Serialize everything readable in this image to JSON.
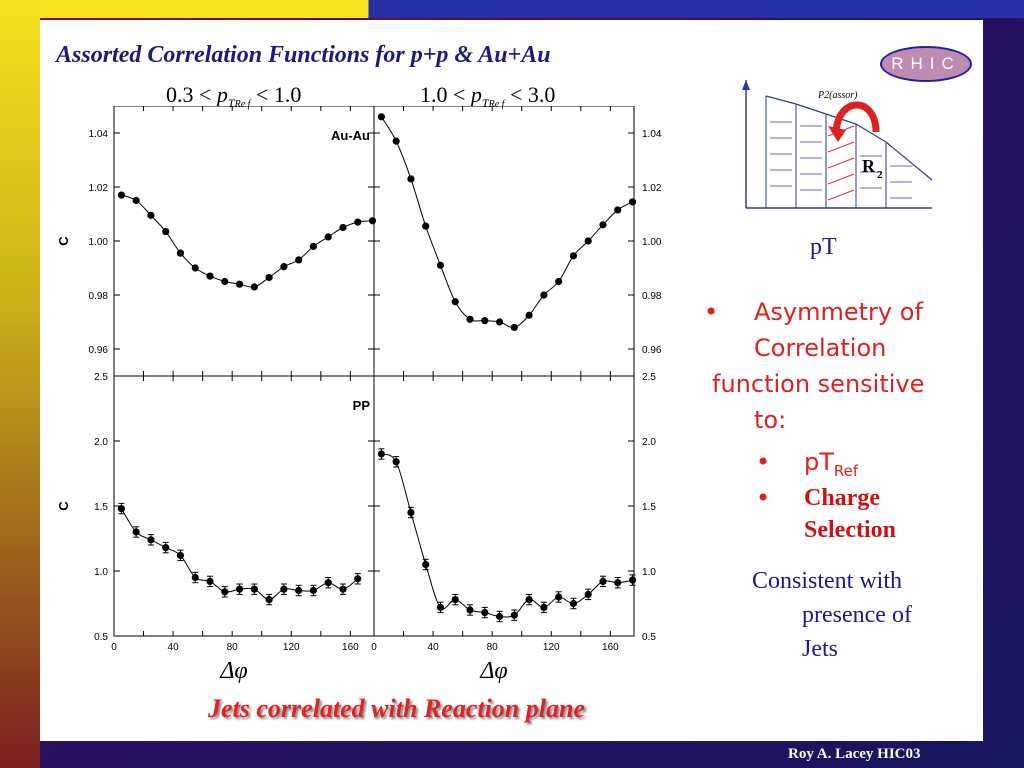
{
  "title": "Assorted Correlation Functions for p+p & Au+Au",
  "logo_text": "RHIC",
  "range_left": {
    "lo": "0.3 <",
    "var": "p",
    "sub": "T",
    "subsub": "Re f",
    "hi": "< 1.0"
  },
  "range_right": {
    "lo": "1.0 <",
    "var": "p",
    "sub": "T",
    "subsub": "Re f",
    "hi": "< 3.0"
  },
  "caption": "Jets correlated with Reaction plane",
  "schematic": {
    "label_top": "P2(assor)",
    "label_r": "R",
    "label_r_sub": "2"
  },
  "pt_label": "pT",
  "bullet_main": [
    "Asymmetry of",
    "Correlation",
    "function sensitive",
    "to:"
  ],
  "bullet_sub1": {
    "text": "pT",
    "sub": "Ref"
  },
  "bullet_sub2": [
    "Charge",
    "Selection"
  ],
  "bullet_marker": "•",
  "consistent": [
    "Consistent with",
    "presence of",
    "Jets"
  ],
  "footer": "Roy A. Lacey HIC03",
  "chart_data": [
    {
      "type": "scatter",
      "panel": "Au-Au, low pTRef",
      "label": "Au-Au",
      "ylabel": "C",
      "xlim": [
        0,
        176
      ],
      "ylim": [
        0.95,
        1.05
      ],
      "yticks": [
        "0.96",
        "0.98",
        "1.00",
        "1.02",
        "1.04"
      ],
      "x": [
        5,
        15,
        25,
        35,
        45,
        55,
        65,
        75,
        85,
        95,
        105,
        115,
        125,
        135,
        145,
        155,
        165,
        175
      ],
      "y": [
        1.017,
        1.015,
        1.0095,
        1.0035,
        0.9955,
        0.99,
        0.987,
        0.985,
        0.984,
        0.983,
        0.9865,
        0.9905,
        0.993,
        0.998,
        1.0015,
        1.005,
        1.007,
        1.0075
      ],
      "fit": "curve"
    },
    {
      "type": "scatter",
      "panel": "Au-Au, high pTRef",
      "ylabel": "C",
      "xlim": [
        0,
        176
      ],
      "ylim": [
        0.95,
        1.05
      ],
      "yticks": [
        "0.96",
        "0.98",
        "1.00",
        "1.02",
        "1.04"
      ],
      "x": [
        5,
        15,
        25,
        35,
        45,
        55,
        65,
        75,
        85,
        95,
        105,
        115,
        125,
        135,
        145,
        155,
        165,
        175
      ],
      "y": [
        1.046,
        1.037,
        1.023,
        1.0055,
        0.991,
        0.9775,
        0.971,
        0.9705,
        0.97,
        0.968,
        0.9725,
        0.98,
        0.985,
        0.9945,
        1.0,
        1.006,
        1.0115,
        1.0145
      ],
      "fit": "curve"
    },
    {
      "type": "scatter",
      "panel": "pp, low pTRef",
      "label": "PP",
      "ylabel": "C",
      "xlim": [
        0,
        176
      ],
      "ylim": [
        0.5,
        2.5
      ],
      "yticks": [
        "0.5",
        "1.0",
        "1.5",
        "2.0",
        "2.5"
      ],
      "xticks": [
        "0",
        "40",
        "80",
        "120",
        "160"
      ],
      "xlabel": "Δφ",
      "x": [
        5,
        15,
        25,
        35,
        45,
        55,
        65,
        75,
        85,
        95,
        105,
        115,
        125,
        135,
        145,
        155,
        165
      ],
      "y": [
        1.48,
        1.3,
        1.24,
        1.18,
        1.12,
        0.95,
        0.92,
        0.84,
        0.86,
        0.86,
        0.78,
        0.86,
        0.85,
        0.85,
        0.91,
        0.86,
        0.94
      ],
      "fit": "curve"
    },
    {
      "type": "scatter",
      "panel": "pp, high pTRef",
      "ylabel": "C",
      "xlim": [
        0,
        176
      ],
      "ylim": [
        0.5,
        2.5
      ],
      "yticks": [
        "0.5",
        "1.0",
        "1.5",
        "2.0",
        "2.5"
      ],
      "xticks": [
        "0",
        "40",
        "80",
        "120",
        "160"
      ],
      "xlabel": "Δφ",
      "x": [
        5,
        15,
        25,
        35,
        45,
        55,
        65,
        75,
        85,
        95,
        105,
        115,
        125,
        135,
        145,
        155,
        165,
        175
      ],
      "y": [
        1.9,
        1.84,
        1.45,
        1.05,
        0.72,
        0.78,
        0.7,
        0.68,
        0.65,
        0.66,
        0.78,
        0.72,
        0.8,
        0.75,
        0.82,
        0.92,
        0.91,
        0.93
      ],
      "fit": "curve"
    }
  ]
}
